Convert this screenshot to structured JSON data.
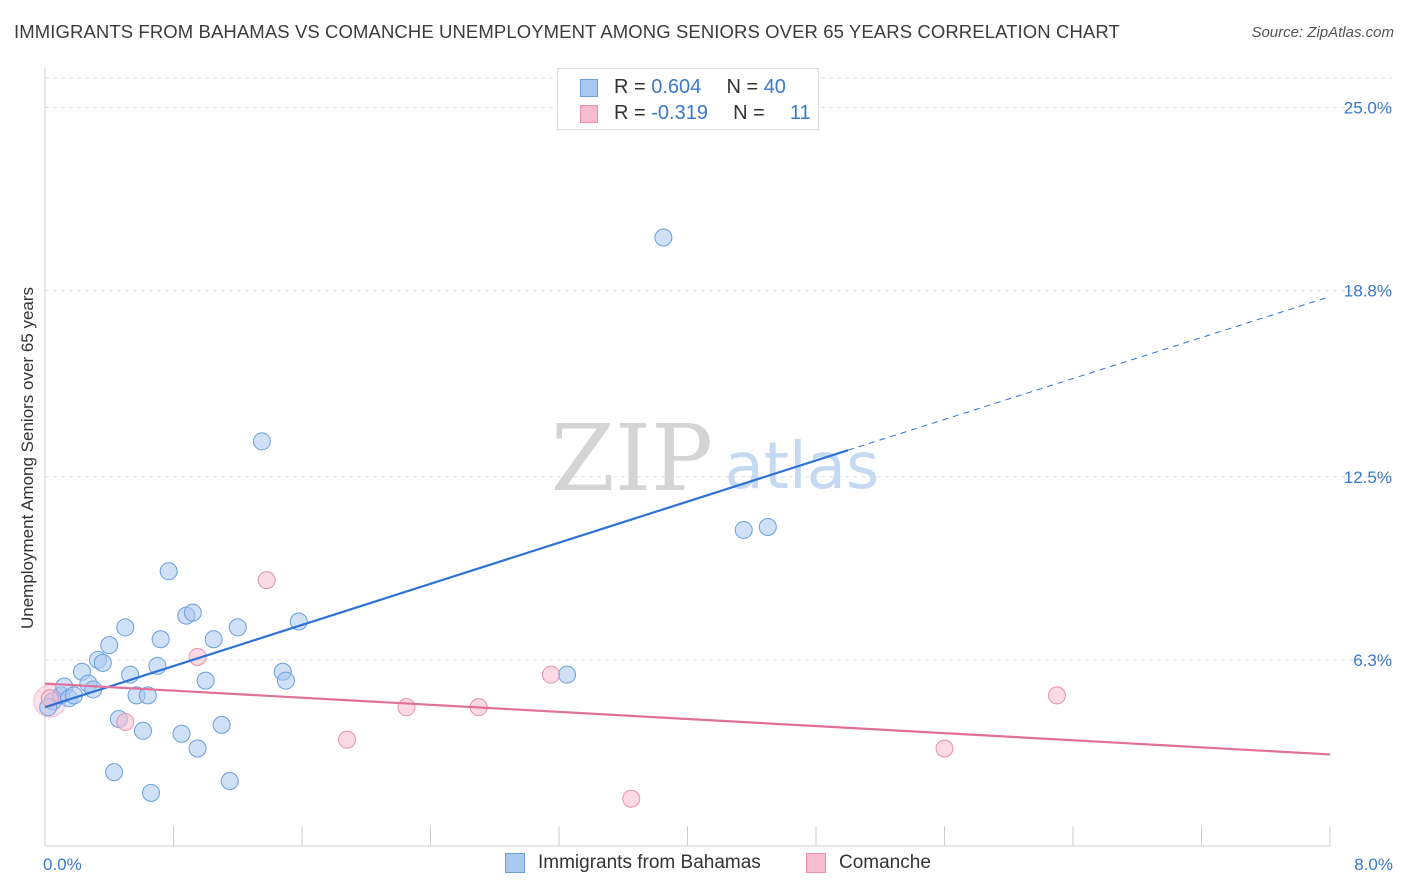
{
  "header": {
    "title": "IMMIGRANTS FROM BAHAMAS VS COMANCHE UNEMPLOYMENT AMONG SENIORS OVER 65 YEARS CORRELATION CHART",
    "source": "Source: ZipAtlas.com"
  },
  "watermark": {
    "zip": "ZIP",
    "atlas": "atlas"
  },
  "stats": {
    "row1": {
      "r_label": "R =",
      "r_value": "0.604",
      "n_label": "N =",
      "n_value": "40"
    },
    "row2": {
      "r_label": "R =",
      "r_value": "-0.319",
      "n_label": "N =",
      "n_value": "11"
    }
  },
  "legend": {
    "series1": "Immigrants from Bahamas",
    "series2": "Comanche"
  },
  "colors": {
    "blue_fill": "#a9c9f0",
    "blue_stroke": "#6a9fe0",
    "blue_line": "#2f72d6",
    "pink_fill": "#f7bcd0",
    "pink_stroke": "#ea8fae",
    "pink_line": "#e0709a",
    "tick_label": "#3a78cc",
    "grid": "#dddddd"
  },
  "chart_data": {
    "type": "scatter",
    "title": "IMMIGRANTS FROM BAHAMAS VS COMANCHE UNEMPLOYMENT AMONG SENIORS OVER 65 YEARS CORRELATION CHART",
    "xlabel": "",
    "ylabel": "Unemployment Among Seniors over 65 years",
    "xlim": [
      0,
      8
    ],
    "ylim": [
      0,
      26
    ],
    "x_tick_labels": {
      "min": "0.0%",
      "max": "8.0%"
    },
    "y_ticks": [
      {
        "value": 6.3,
        "label": "6.3%"
      },
      {
        "value": 12.5,
        "label": "12.5%"
      },
      {
        "value": 18.8,
        "label": "18.8%"
      },
      {
        "value": 25.0,
        "label": "25.0%"
      }
    ],
    "series": [
      {
        "name": "Immigrants from Bahamas",
        "points": [
          [
            0.05,
            4.9
          ],
          [
            0.1,
            5.1
          ],
          [
            0.12,
            5.4
          ],
          [
            0.15,
            5.0
          ],
          [
            0.18,
            5.1
          ],
          [
            0.23,
            5.9
          ],
          [
            0.27,
            5.5
          ],
          [
            0.3,
            5.3
          ],
          [
            0.33,
            6.3
          ],
          [
            0.36,
            6.2
          ],
          [
            0.4,
            6.8
          ],
          [
            0.43,
            2.5
          ],
          [
            0.46,
            4.3
          ],
          [
            0.5,
            7.4
          ],
          [
            0.53,
            5.8
          ],
          [
            0.57,
            5.1
          ],
          [
            0.61,
            3.9
          ],
          [
            0.64,
            5.1
          ],
          [
            0.66,
            1.8
          ],
          [
            0.7,
            6.1
          ],
          [
            0.72,
            7.0
          ],
          [
            0.77,
            9.3
          ],
          [
            0.85,
            3.8
          ],
          [
            0.88,
            7.8
          ],
          [
            0.92,
            7.9
          ],
          [
            0.95,
            3.3
          ],
          [
            1.0,
            5.6
          ],
          [
            1.05,
            7.0
          ],
          [
            1.1,
            4.1
          ],
          [
            1.15,
            2.2
          ],
          [
            1.2,
            7.4
          ],
          [
            1.35,
            13.7
          ],
          [
            1.48,
            5.9
          ],
          [
            1.5,
            5.6
          ],
          [
            1.58,
            7.6
          ],
          [
            3.25,
            5.8
          ],
          [
            3.85,
            20.6
          ],
          [
            4.35,
            10.7
          ],
          [
            4.5,
            10.8
          ],
          [
            0.02,
            4.7
          ]
        ],
        "trend": {
          "x0": 0.0,
          "y0": 4.7,
          "x1": 5.0,
          "y1": 13.4,
          "dashed_to_x": 8.0,
          "dashed_to_y": 18.6
        }
      },
      {
        "name": "Comanche",
        "points": [
          [
            0.03,
            5.0
          ],
          [
            0.5,
            4.2
          ],
          [
            0.95,
            6.4
          ],
          [
            1.38,
            9.0
          ],
          [
            1.88,
            3.6
          ],
          [
            2.25,
            4.7
          ],
          [
            2.7,
            4.7
          ],
          [
            3.15,
            5.8
          ],
          [
            3.65,
            1.6
          ],
          [
            5.6,
            3.3
          ],
          [
            6.3,
            5.1
          ]
        ],
        "trend": {
          "x0": 0.0,
          "y0": 5.5,
          "x1": 8.0,
          "y1": 3.1
        }
      }
    ]
  }
}
